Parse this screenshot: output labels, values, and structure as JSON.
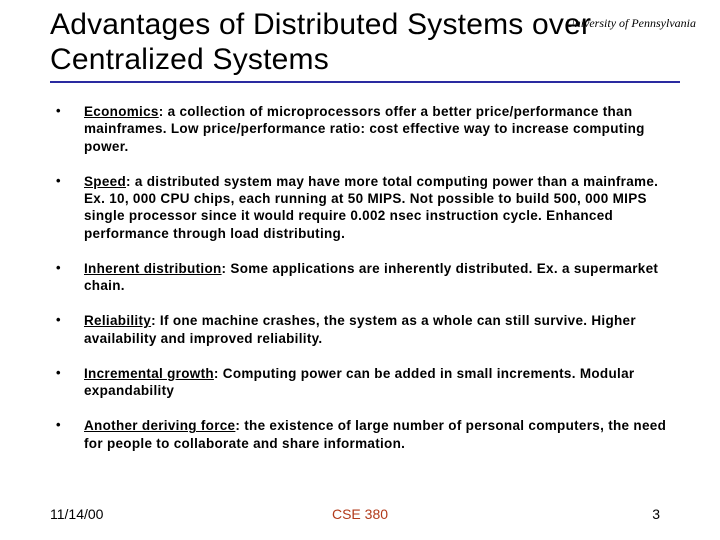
{
  "institution": "University of Pennsylvania",
  "title": "Advantages of Distributed Systems over Centralized Systems",
  "colors": {
    "underline": "#2a2aa0",
    "course_color": "#b23a1a",
    "text": "#000000",
    "background": "#ffffff"
  },
  "typography": {
    "title_font": "Trebuchet MS",
    "title_size_pt": 30,
    "body_font": "Trebuchet MS",
    "body_size_pt": 13.5,
    "body_weight": "bold",
    "institution_style": "italic"
  },
  "bullets": [
    {
      "term": "Economics",
      "text": ": a collection of microprocessors offer a better price/performance than mainframes. Low price/performance ratio: cost effective way to increase computing power."
    },
    {
      "term": "Speed",
      "text": ": a distributed system may have more total computing power than a mainframe. Ex. 10, 000 CPU chips, each running at 50 MIPS. Not possible to build 500, 000 MIPS single processor since it would require 0.002 nsec instruction cycle. Enhanced performance through load distributing."
    },
    {
      "term": "Inherent distribution",
      "text": ": Some applications are inherently distributed. Ex. a supermarket chain."
    },
    {
      "term": "Reliability",
      "text": ": If one machine crashes, the system as a whole can still survive. Higher availability and improved reliability."
    },
    {
      "term": "Incremental growth",
      "text": ": Computing power can be added in small increments. Modular expandability"
    },
    {
      "term": "Another deriving force",
      "text": ": the existence of large number of personal computers, the need for people to collaborate and share information."
    }
  ],
  "footer": {
    "date": "11/14/00",
    "course": "CSE 380",
    "page": "3"
  }
}
